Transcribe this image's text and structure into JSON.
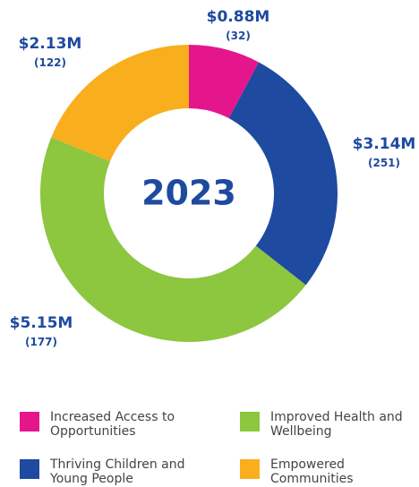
{
  "chart_data": {
    "type": "pie",
    "donut": true,
    "center_label": "2023",
    "categories": [
      "Increased Access to Opportunities",
      "Thriving Children and Young People",
      "Improved Health and Wellbeing",
      "Empowered Communities"
    ],
    "values": [
      0.88,
      3.14,
      5.15,
      2.13
    ],
    "value_labels": [
      "$0.88M",
      "$3.14M",
      "$5.15M",
      "$2.13M"
    ],
    "counts": [
      32,
      251,
      177,
      122
    ],
    "count_labels": [
      "(32)",
      "(251)",
      "(177)",
      "(122)"
    ],
    "colors": [
      "#e5168c",
      "#1e4aa0",
      "#8dc63f",
      "#f9ae1e"
    ]
  }
}
